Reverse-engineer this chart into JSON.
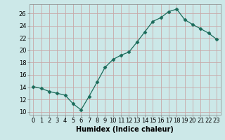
{
  "x": [
    0,
    1,
    2,
    3,
    4,
    5,
    6,
    7,
    8,
    9,
    10,
    11,
    12,
    13,
    14,
    15,
    16,
    17,
    18,
    19,
    20,
    21,
    22,
    23
  ],
  "y": [
    14.1,
    13.8,
    13.3,
    13.0,
    12.7,
    11.3,
    10.3,
    12.5,
    14.8,
    17.2,
    18.5,
    19.2,
    19.7,
    21.3,
    23.0,
    24.7,
    25.3,
    26.3,
    26.7,
    25.0,
    24.2,
    23.5,
    22.8,
    21.8
  ],
  "line_color": "#1a6b5a",
  "marker": "D",
  "marker_size": 2.5,
  "bg_color": "#cce8e8",
  "grid_color": "#c8a8a8",
  "xlabel": "Humidex (Indice chaleur)",
  "xlim": [
    -0.5,
    23.5
  ],
  "ylim": [
    9.5,
    27.5
  ],
  "yticks": [
    10,
    12,
    14,
    16,
    18,
    20,
    22,
    24,
    26
  ],
  "xticks": [
    0,
    1,
    2,
    3,
    4,
    5,
    6,
    7,
    8,
    9,
    10,
    11,
    12,
    13,
    14,
    15,
    16,
    17,
    18,
    19,
    20,
    21,
    22,
    23
  ],
  "label_fontsize": 7,
  "tick_fontsize": 6
}
